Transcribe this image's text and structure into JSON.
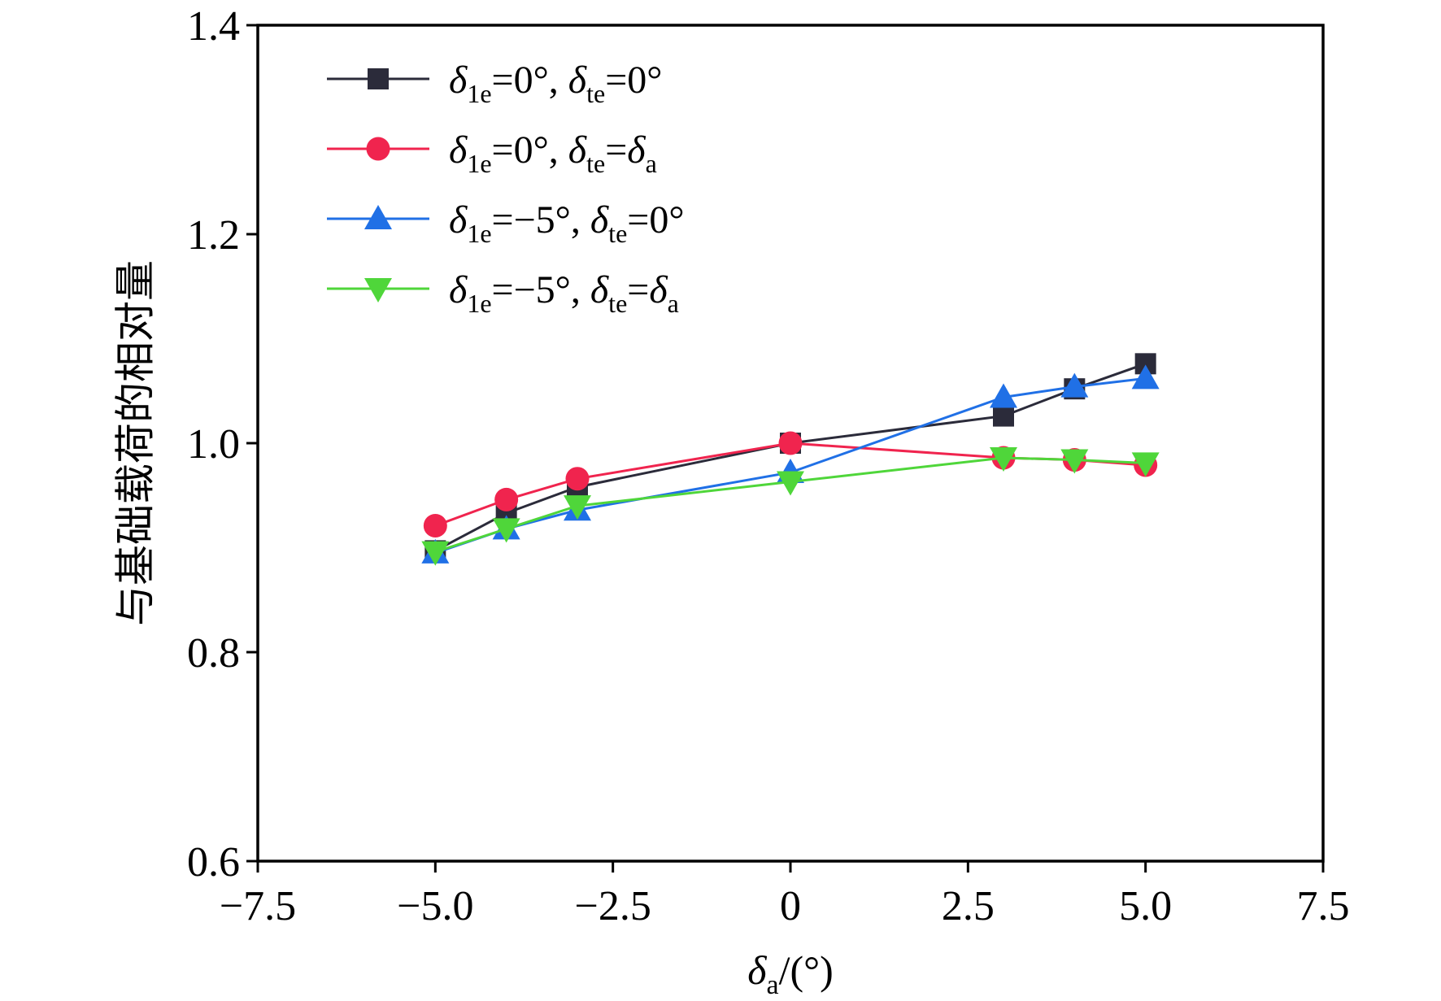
{
  "chart_data": {
    "type": "line",
    "title": "",
    "xlabel": "δ_a/(°)",
    "xlabel_parts": {
      "symbol": "δ",
      "subscript": "a",
      "suffix": "/(°)"
    },
    "ylabel": "与基础载荷的相对量",
    "xlim": [
      -7.5,
      7.5
    ],
    "ylim": [
      0.6,
      1.4
    ],
    "x_ticks": [
      -7.5,
      -5.0,
      -2.5,
      0,
      2.5,
      5.0,
      7.5
    ],
    "x_tick_labels": [
      "−7.5",
      "−5.0",
      "−2.5",
      "0",
      "2.5",
      "5.0",
      "7.5"
    ],
    "y_ticks": [
      0.6,
      0.8,
      1.0,
      1.2,
      1.4
    ],
    "y_tick_labels": [
      "0.6",
      "0.8",
      "1.0",
      "1.2",
      "1.4"
    ],
    "grid": false,
    "legend_position": "top-left",
    "series": [
      {
        "name": "δ1e=0°, δte=0°",
        "label_parts": [
          "δ",
          "1e",
          "=0°, ",
          "δ",
          "te",
          "=0°",
          ""
        ],
        "color": "#2b2b3a",
        "marker": "square",
        "x": [
          -5,
          -4,
          -3,
          0,
          3,
          4,
          5
        ],
        "values": [
          0.897,
          0.933,
          0.958,
          1.0,
          1.026,
          1.052,
          1.076
        ]
      },
      {
        "name": "δ1e=0°, δte=δa",
        "label_parts": [
          "δ",
          "1e",
          "=0°, ",
          "δ",
          "te",
          "=δ",
          "a"
        ],
        "color": "#f0244e",
        "marker": "circle",
        "x": [
          -5,
          -4,
          -3,
          0,
          3,
          4,
          5
        ],
        "values": [
          0.921,
          0.946,
          0.966,
          1.0,
          0.986,
          0.984,
          0.979
        ]
      },
      {
        "name": "δ1e=−5°, δte=0°",
        "label_parts": [
          "δ",
          "1e",
          "=−5°, ",
          "δ",
          "te",
          "=0°",
          ""
        ],
        "color": "#2070e6",
        "marker": "triangle-up",
        "x": [
          -5,
          -4,
          -3,
          0,
          3,
          4,
          5
        ],
        "values": [
          0.895,
          0.918,
          0.936,
          0.972,
          1.044,
          1.054,
          1.062
        ]
      },
      {
        "name": "δ1e=−5°, δte=δa",
        "label_parts": [
          "δ",
          "1e",
          "=−5°, ",
          "δ",
          "te",
          "=δ",
          "a"
        ],
        "color": "#4fd63a",
        "marker": "triangle-down",
        "x": [
          -5,
          -4,
          -3,
          0,
          3,
          4,
          5
        ],
        "values": [
          0.896,
          0.918,
          0.94,
          0.963,
          0.986,
          0.984,
          0.981
        ]
      }
    ]
  }
}
